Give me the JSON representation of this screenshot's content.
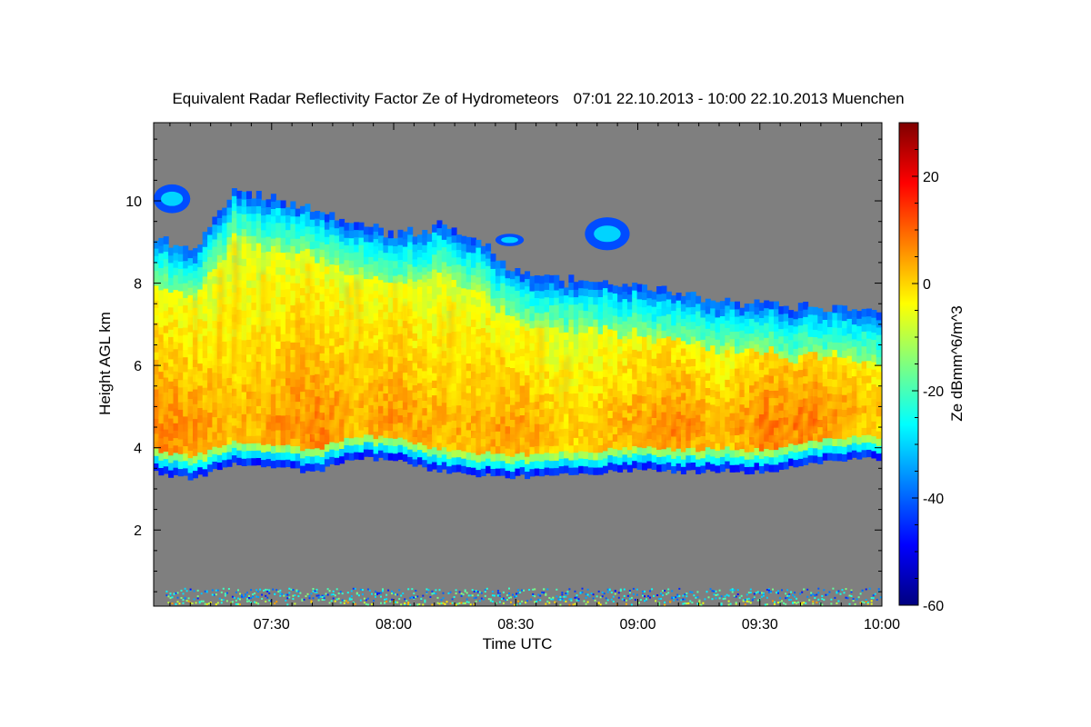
{
  "chart_data": {
    "type": "heatmap",
    "title": "Equivalent Radar Reflectivity Factor Ze of Hydrometeors",
    "time_range_text": "07:01 22.10.2013 - 10:00 22.10.2013 Muenchen",
    "xlabel": "Time UTC",
    "ylabel": "Height AGL km",
    "colorbar_label": "Ze dBmm^6/m^3",
    "x_range_minutes": [
      421,
      600
    ],
    "y_range_km": [
      0.15,
      11.9
    ],
    "x_ticks": [
      {
        "label": "07:30",
        "minutes": 450
      },
      {
        "label": "08:00",
        "minutes": 480
      },
      {
        "label": "08:30",
        "minutes": 510
      },
      {
        "label": "09:00",
        "minutes": 540
      },
      {
        "label": "09:30",
        "minutes": 570
      },
      {
        "label": "10:00",
        "minutes": 600
      }
    ],
    "y_ticks": [
      {
        "label": "2",
        "value": 2
      },
      {
        "label": "4",
        "value": 4
      },
      {
        "label": "6",
        "value": 6
      },
      {
        "label": "8",
        "value": 8
      },
      {
        "label": "10",
        "value": 10
      }
    ],
    "colorbar_range": [
      -60,
      30
    ],
    "colorbar_ticks": [
      {
        "label": "20",
        "value": 20
      },
      {
        "label": "0",
        "value": 0
      },
      {
        "label": "-20",
        "value": -20
      },
      {
        "label": "-40",
        "value": -40
      },
      {
        "label": "-60",
        "value": -60
      }
    ],
    "colormap": [
      "#00007f",
      "#0000ff",
      "#007fff",
      "#00ffff",
      "#7fff7f",
      "#ffff00",
      "#ff7f00",
      "#ff0000",
      "#7f0000"
    ],
    "background_color": "#7f7f7f",
    "cloud": {
      "time_minutes": [
        421,
        430,
        440,
        450,
        460,
        470,
        480,
        490,
        500,
        510,
        520,
        530,
        540,
        550,
        560,
        570,
        580,
        590,
        600
      ],
      "top_km": [
        9.1,
        8.6,
        10.2,
        10.0,
        9.7,
        9.4,
        9.1,
        9.3,
        8.9,
        8.2,
        8.0,
        7.95,
        7.85,
        7.65,
        7.5,
        7.45,
        7.3,
        7.3,
        7.1
      ],
      "base_km": [
        3.4,
        3.25,
        3.6,
        3.55,
        3.4,
        3.75,
        3.7,
        3.45,
        3.35,
        3.3,
        3.35,
        3.4,
        3.5,
        3.4,
        3.45,
        3.4,
        3.6,
        3.7,
        3.75
      ],
      "core_dbz": [
        8,
        6,
        2,
        5,
        9,
        3,
        6,
        3,
        4,
        6,
        0,
        2,
        5,
        8,
        2,
        9,
        10,
        5,
        0
      ]
    },
    "isolated_patches": [
      {
        "t0": 421,
        "t1": 430,
        "bottom_km": 9.7,
        "top_km": 10.4
      },
      {
        "t0": 505,
        "t1": 512,
        "bottom_km": 8.9,
        "top_km": 9.2
      },
      {
        "t0": 527,
        "t1": 538,
        "bottom_km": 8.8,
        "top_km": 9.6
      }
    ],
    "ground_clutter": {
      "bottom_km": 0.2,
      "top_km": 0.6
    }
  },
  "colors": {
    "no_signal": "#7f7f7f",
    "axis": "#000000"
  }
}
